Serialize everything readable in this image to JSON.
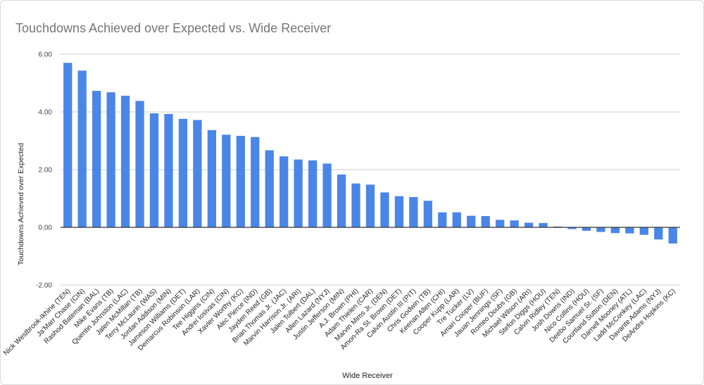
{
  "chart_data": {
    "type": "bar",
    "title": "Touchdowns Achieved over Expected vs. Wide Receiver",
    "xlabel": "Wide Receiver",
    "ylabel": "Touchdowns Achieved over Expected",
    "ylim": [
      -2,
      6
    ],
    "yticks": [
      "6.00",
      "4.00",
      "2.00",
      "0.00",
      "-2.00"
    ],
    "ytick_values": [
      6,
      4,
      2,
      0,
      -2
    ],
    "bar_color": "#4a86e8",
    "grid": true,
    "categories": [
      "Nick Westbrook-Ikhine (TEN)",
      "Ja'Marr Chase (CIN)",
      "Rashod Bateman (BAL)",
      "Mike Evans (TB)",
      "Quentin Johnston (LAC)",
      "Jalen McMillan (TB)",
      "Terry McLaurin (WAS)",
      "Jordan Addison (MIN)",
      "Jameson Williams (DET)",
      "Demarcus Robinson (LAR)",
      "Tee Higgins (CIN)",
      "Andrei Iosivas (CIN)",
      "Xavier Worthy (KC)",
      "Alec Pierce (IND)",
      "Jayden Reed (GB)",
      "Brian Thomas Jr. (JAC)",
      "Marvin Harrison Jr. (ARI)",
      "Jalen Tolbert (DAL)",
      "Allen Lazard (NYJ)",
      "Justin Jefferson (MIN)",
      "A.J. Brown (PHI)",
      "Adam Thielen (CAR)",
      "Marvin Mims Jr. (DEN)",
      "Amon-Ra St. Brown (DET)",
      "Calvin Austin III (PIT)",
      "Chris Godwin (TB)",
      "Keenan Allen (CHI)",
      "Cooper Kupp (LAR)",
      "Tre Tucker (LV)",
      "Amari Cooper (BUF)",
      "Jauan Jennings (SF)",
      "Romeo Doubs (GB)",
      "Michael Wilson (ARI)",
      "Stefon Diggs (HOU)",
      "Calvin Ridley (TEN)",
      "Josh Downs (IND)",
      "Nico Collins (HOU)",
      "Deebo Samuel Sr. (SF)",
      "Courtland Sutton (DEN)",
      "Darnell Mooney (ATL)",
      "Ladd McConkey (LAC)",
      "Davante Adams (NYJ)",
      "DeAndre Hopkins (KC)"
    ],
    "values": [
      5.7,
      5.43,
      4.73,
      4.68,
      4.56,
      4.38,
      3.95,
      3.93,
      3.76,
      3.72,
      3.37,
      3.21,
      3.17,
      3.13,
      2.67,
      2.46,
      2.35,
      2.32,
      2.21,
      1.83,
      1.52,
      1.48,
      1.21,
      1.08,
      1.05,
      0.92,
      0.52,
      0.52,
      0.4,
      0.39,
      0.26,
      0.24,
      0.16,
      0.15,
      0.03,
      -0.06,
      -0.12,
      -0.16,
      -0.2,
      -0.21,
      -0.26,
      -0.42,
      -0.56
    ]
  }
}
